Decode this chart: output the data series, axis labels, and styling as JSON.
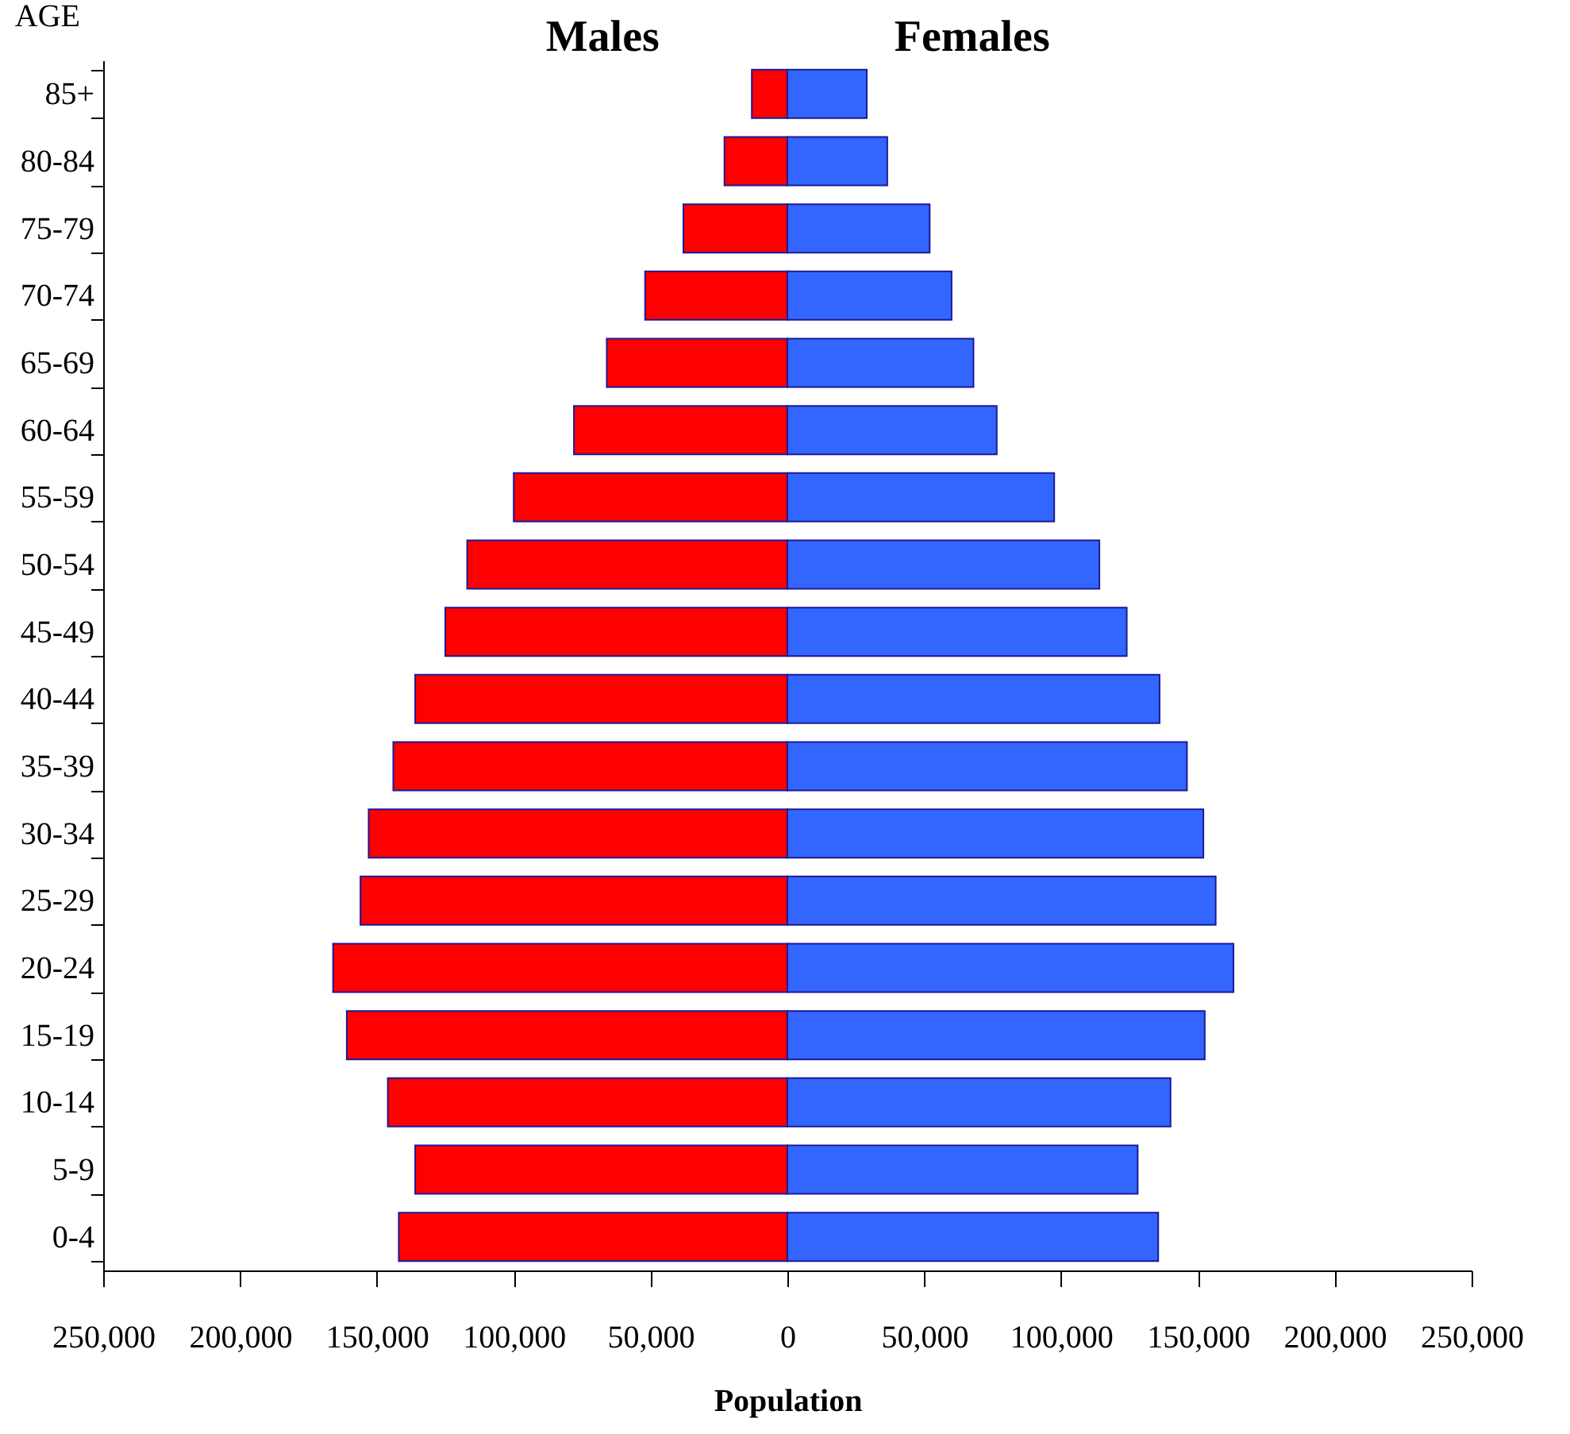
{
  "chart_data": {
    "type": "bar",
    "orientation": "horizontal",
    "xlabel": "Population",
    "ylabel": "AGE",
    "categories": [
      "85+",
      "80-84",
      "75-79",
      "70-74",
      "65-69",
      "60-64",
      "55-59",
      "50-54",
      "45-49",
      "40-44",
      "35-39",
      "30-34",
      "25-29",
      "20-24",
      "15-19",
      "10-14",
      "5-9",
      "0-4"
    ],
    "series": [
      {
        "name": "Males",
        "color": "#ff0000",
        "values": [
          -13000,
          -23000,
          -38000,
          -52000,
          -66000,
          -78000,
          -100000,
          -117000,
          -125000,
          -136000,
          -144000,
          -153000,
          -156000,
          -166000,
          -161000,
          -146000,
          -136000,
          -142000
        ]
      },
      {
        "name": "Females",
        "color": "#3366ff",
        "values": [
          29000,
          36500,
          52000,
          60000,
          68000,
          76500,
          97500,
          114000,
          124000,
          136000,
          146000,
          152000,
          156500,
          163000,
          152500,
          140000,
          128000,
          135500
        ]
      }
    ],
    "xlim": [
      -250000,
      250000
    ],
    "xticks": [
      {
        "value": -250000,
        "label": "250,000"
      },
      {
        "value": -200000,
        "label": "200,000"
      },
      {
        "value": -150000,
        "label": "150,000"
      },
      {
        "value": -100000,
        "label": "100,000"
      },
      {
        "value": -50000,
        "label": "50,000"
      },
      0,
      {
        "value": 50000,
        "label": "50,000"
      },
      {
        "value": 100000,
        "label": "100,000"
      },
      {
        "value": 150000,
        "label": "150,000"
      },
      {
        "value": 200000,
        "label": "200,000"
      },
      {
        "value": 250000,
        "label": "250,000"
      }
    ],
    "stacked": true,
    "grid": false
  }
}
